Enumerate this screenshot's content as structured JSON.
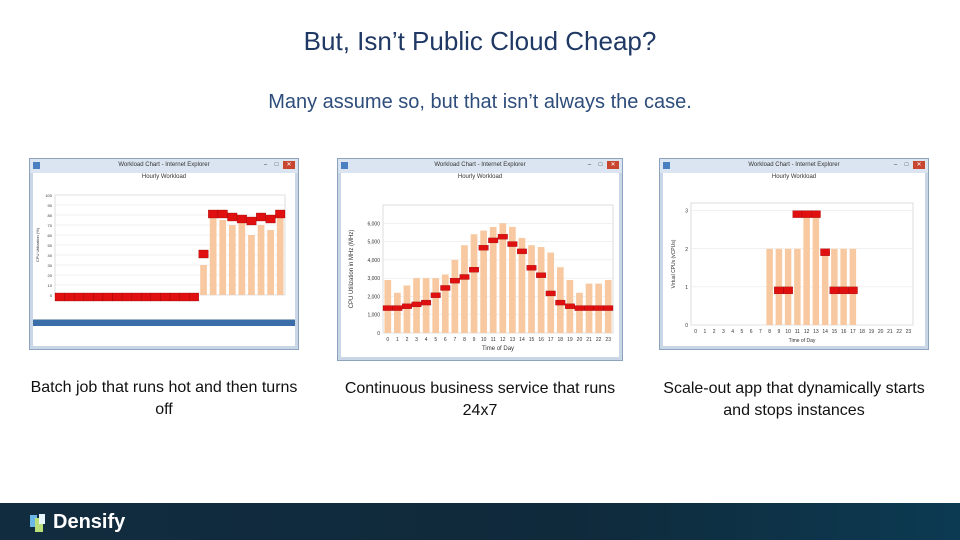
{
  "slide": {
    "title": "But, Isn’t Public Cloud Cheap?",
    "subtitle": "Many assume so, but that isn’t always the case."
  },
  "windows": [
    {
      "title": "Workload Chart - Internet Explorer",
      "chart_title": "Hourly Workload"
    },
    {
      "title": "Workload Chart - Internet Explorer",
      "chart_title": "Hourly Workload"
    },
    {
      "title": "Workload Chart - Internet Explorer",
      "chart_title": "Hourly Workload"
    }
  ],
  "captions": [
    "Batch job that runs hot and then turns off",
    "Continuous business service that runs 24x7",
    "Scale-out app that dynamically starts and stops instances"
  ],
  "footer": {
    "logo_text": "Densify"
  },
  "colors": {
    "title": "#1f3864",
    "bar_red": "#e01010",
    "bar_peach": "#f8c8a0",
    "footer_bg": "#122c3f"
  },
  "chart_data": [
    {
      "type": "bar",
      "title": "Hourly Workload",
      "ylabel": "CPU Utilization (%)",
      "ylim": [
        0,
        100
      ],
      "yticks": [
        "0",
        "10",
        "20",
        "30",
        "40",
        "50",
        "60",
        "70",
        "80",
        "90",
        "100"
      ],
      "x_count": 24,
      "series": [
        {
          "values": [
            2,
            2,
            2,
            2,
            2,
            2,
            2,
            2,
            2,
            2,
            2,
            2,
            2,
            2,
            2,
            45,
            85,
            85,
            82,
            80,
            78,
            82,
            80,
            85
          ]
        },
        {
          "values": [
            0,
            0,
            0,
            0,
            0,
            0,
            0,
            0,
            0,
            0,
            0,
            0,
            0,
            0,
            0,
            30,
            80,
            75,
            70,
            72,
            60,
            70,
            65,
            82
          ]
        }
      ]
    },
    {
      "type": "bar",
      "title": "Hourly Workload",
      "xlabel": "Time of Day",
      "ylabel": "CPU Utilization in MHz (MHz)",
      "ylim": [
        0,
        7000
      ],
      "yticks": [
        "0",
        "1,000",
        "2,000",
        "3,000",
        "4,000",
        "5,000",
        "6,000"
      ],
      "categories": [
        "0",
        "1",
        "2",
        "3",
        "4",
        "5",
        "6",
        "7",
        "8",
        "9",
        "10",
        "11",
        "12",
        "13",
        "14",
        "15",
        "16",
        "17",
        "18",
        "19",
        "20",
        "21",
        "22",
        "23"
      ],
      "series": [
        {
          "values": [
            1500,
            1500,
            1600,
            1700,
            1800,
            2200,
            2600,
            3000,
            3200,
            3600,
            4800,
            5200,
            5400,
            5000,
            4600,
            3700,
            3300,
            2300,
            1800,
            1600,
            1500,
            1500,
            1500,
            1500
          ]
        },
        {
          "values": [
            2900,
            2200,
            2600,
            3000,
            3000,
            3000,
            3200,
            4000,
            4800,
            5400,
            5600,
            5800,
            6000,
            5800,
            5200,
            4800,
            4700,
            4400,
            3600,
            2900,
            2200,
            2700,
            2700,
            2900
          ]
        }
      ]
    },
    {
      "type": "bar",
      "title": "Hourly Workload",
      "xlabel": "Time of Day",
      "ylabel": "Virtual CPUs (vCPUs)",
      "ylim": [
        0,
        3.2
      ],
      "yticks": [
        "0",
        "1",
        "2",
        "3"
      ],
      "categories": [
        "0",
        "1",
        "2",
        "3",
        "4",
        "5",
        "6",
        "7",
        "8",
        "9",
        "10",
        "11",
        "12",
        "13",
        "14",
        "15",
        "16",
        "17",
        "18",
        "19",
        "20",
        "21",
        "22",
        "23"
      ],
      "series": [
        {
          "values": [
            0,
            0,
            0,
            0,
            0,
            0,
            0,
            0,
            0,
            1,
            1,
            3,
            3,
            3,
            2,
            1,
            1,
            1,
            0,
            0,
            0,
            0,
            0,
            0
          ]
        },
        {
          "values": [
            0,
            0,
            0,
            0,
            0,
            0,
            0,
            0,
            2,
            2,
            2,
            2,
            3,
            3,
            2,
            2,
            2,
            2,
            0,
            0,
            0,
            0,
            0,
            0
          ]
        }
      ]
    }
  ]
}
